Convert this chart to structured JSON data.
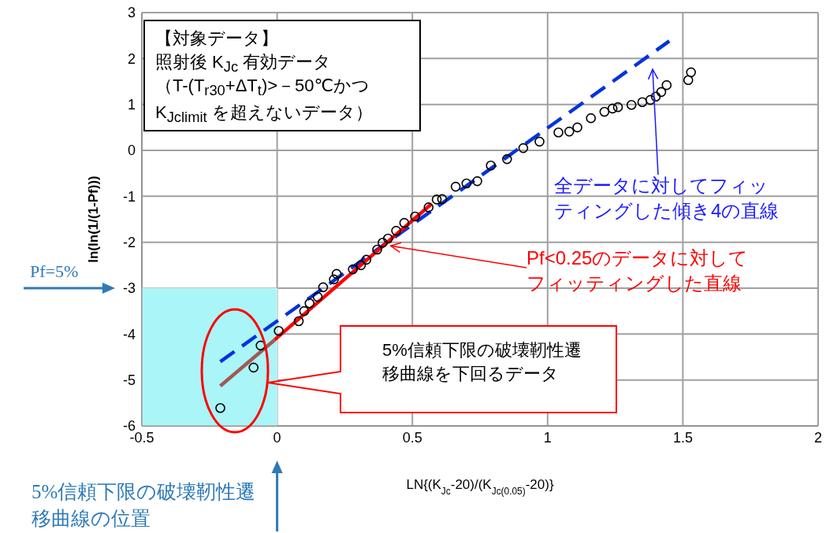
{
  "chart_data": {
    "type": "scatter",
    "xlabel": "LN{(K$_{Jc}$-20)/(K$_{Jc(0.05)}$-20)}",
    "ylabel": "ln(ln(1/(1-Pf)))",
    "xlim": [
      -0.5,
      2
    ],
    "xticks": [
      -0.5,
      0,
      0.5,
      1,
      1.5,
      2
    ],
    "ylim": [
      -6,
      3
    ],
    "yticks": [
      -6,
      -5,
      -4,
      -3,
      -2,
      -1,
      0,
      1,
      2,
      3
    ],
    "grid": true,
    "series": [
      {
        "color": "#000000",
        "marker": "circle",
        "x": [
          -0.21,
          -0.087,
          -0.061,
          0.006,
          0.08,
          0.1,
          0.12,
          0.15,
          0.17,
          0.21,
          0.22,
          0.28,
          0.31,
          0.33,
          0.37,
          0.39,
          0.41,
          0.44,
          0.47,
          0.51,
          0.56,
          0.59,
          0.61,
          0.66,
          0.7,
          0.74,
          0.79,
          0.85,
          0.91,
          0.97,
          1.04,
          1.08,
          1.11,
          1.16,
          1.21,
          1.24,
          1.26,
          1.31,
          1.35,
          1.38,
          1.4,
          1.42,
          1.44,
          1.52,
          1.53
        ],
        "values": [
          -5.61,
          -4.73,
          -4.25,
          -3.93,
          -3.72,
          -3.5,
          -3.33,
          -3.19,
          -2.98,
          -2.81,
          -2.69,
          -2.59,
          -2.5,
          -2.38,
          -2.16,
          -2.01,
          -1.92,
          -1.75,
          -1.58,
          -1.44,
          -1.24,
          -1.07,
          -1.06,
          -0.79,
          -0.72,
          -0.67,
          -0.33,
          -0.19,
          0.05,
          0.19,
          0.39,
          0.41,
          0.5,
          0.7,
          0.84,
          0.91,
          0.94,
          0.99,
          1.05,
          1.1,
          1.17,
          1.27,
          1.42,
          1.53,
          1.7
        ]
      },
      {
        "type": "line",
        "color": "#0033dd",
        "marker": "none",
        "line_style": "dashed",
        "x": [
          -0.21,
          1.45
        ],
        "values": [
          -4.6,
          2.38
        ]
      },
      {
        "type": "line",
        "color": "#ff0000",
        "marker": "none",
        "line_style": "solid",
        "x": [
          -0.01,
          0.57
        ],
        "values": [
          -4.13,
          -1.17
        ]
      },
      {
        "type": "line",
        "color": "#a05a55",
        "marker": "none",
        "line_style": "solid",
        "x": [
          -0.21,
          -0.01
        ],
        "values": [
          -5.13,
          -4.13
        ]
      }
    ],
    "bands": [
      {
        "axis": "x",
        "from": -0.5,
        "to": 0,
        "color": "#aaf5f8"
      }
    ],
    "annotations": [
      "【対象データ】",
      "照射後 K$_{Jc}$ 有効データ",
      "（T-(T$_{r30}$+ΔT$_{t}$)>－50℃かつK$_{Jclimit}$ を超えないデータ）",
      "全データに対してフィッティングした傾き4の直線",
      {
        "text": "Pf<0.25のデータに対してフィッティングした直線",
        "x": 0.42,
        "y": -2.08
      },
      "5%信頼下限の破壊靭性遷移曲線を下回るデータ",
      "Pf=5%",
      "5%信頼下限の破壊靭性遷移曲線の位置"
    ]
  }
}
